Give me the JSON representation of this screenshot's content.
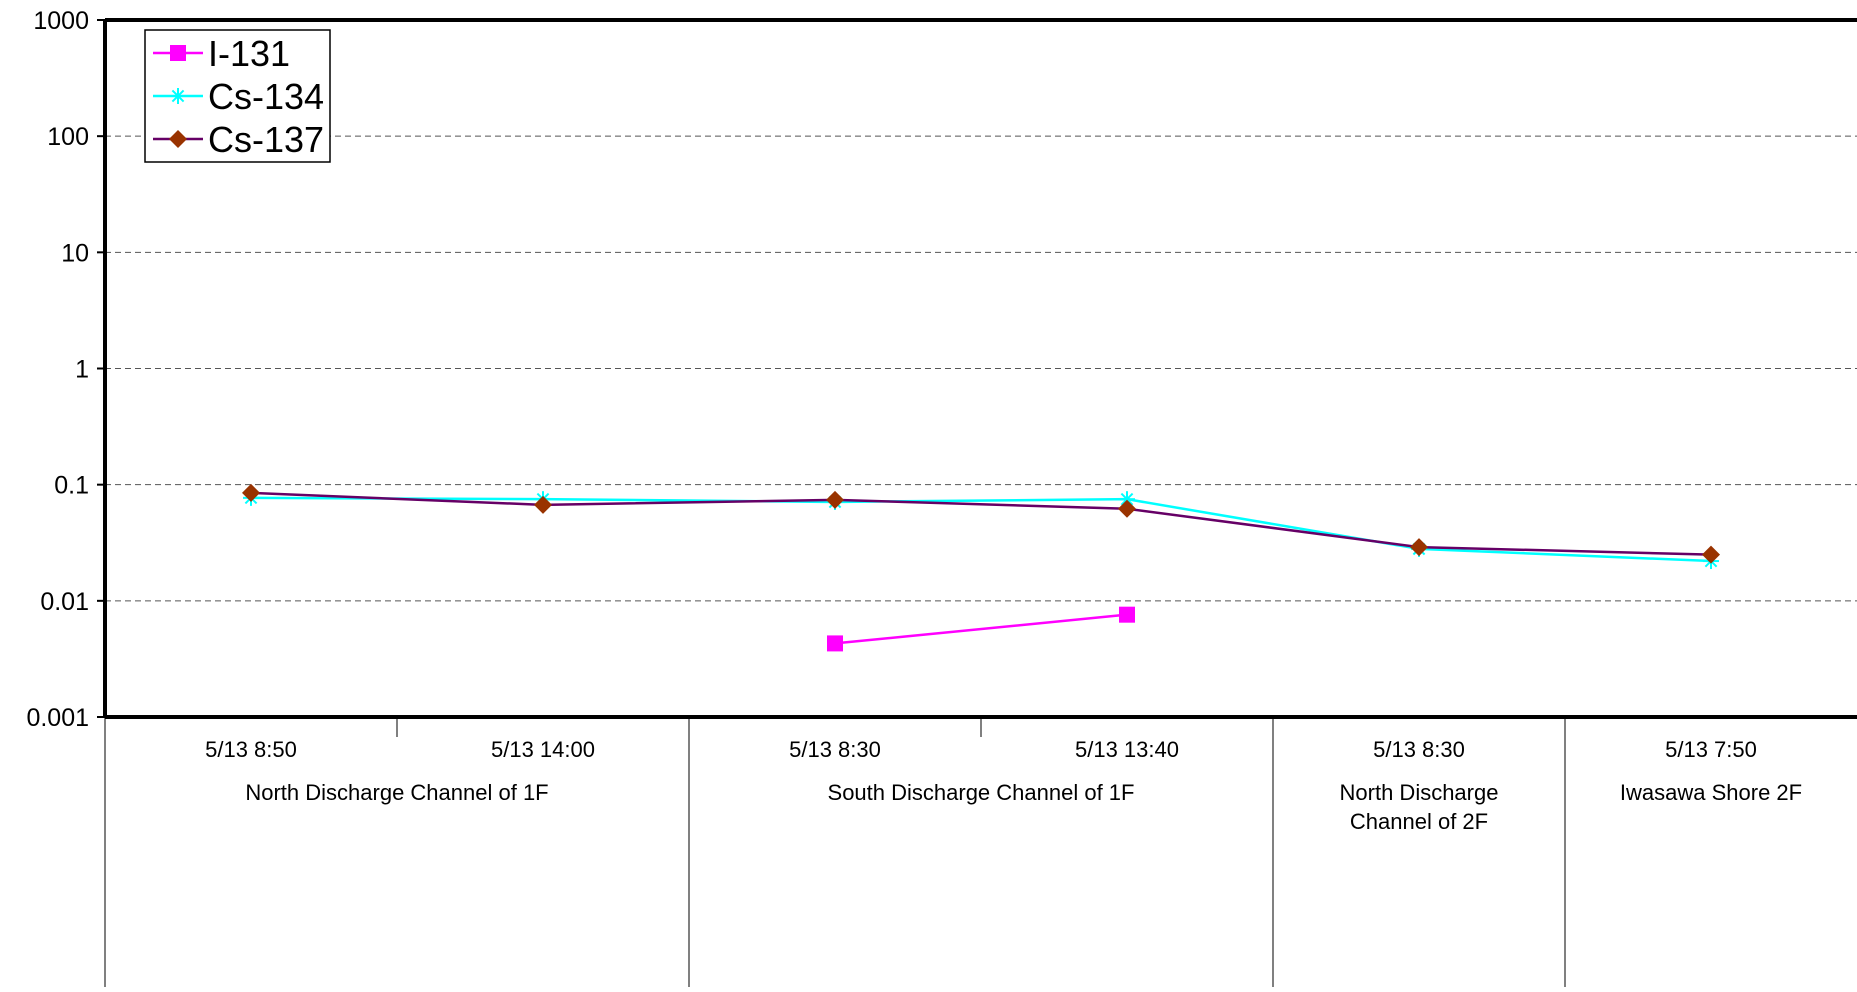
{
  "chart_data": {
    "type": "line",
    "title": "",
    "xlabel": "",
    "ylabel": "",
    "y_scale": "log",
    "ylim": [
      0.001,
      1000
    ],
    "y_ticks": [
      "0.001",
      "0.01",
      "0.1",
      "1",
      "10",
      "100",
      "1000"
    ],
    "grid": "horizontal dashed",
    "legend_position": "top-left",
    "categories": [
      "5/13 8:50",
      "5/13 14:00",
      "5/13 8:30",
      "5/13 13:40",
      "5/13 8:30",
      "5/13 7:50"
    ],
    "groups": [
      {
        "label": "North Discharge Channel of 1F",
        "span": 2
      },
      {
        "label": "South Discharge Channel of 1F",
        "span": 2
      },
      {
        "label": "North Discharge\nChannel of 2F",
        "span": 1
      },
      {
        "label": "Iwasawa Shore 2F",
        "span": 1
      }
    ],
    "series": [
      {
        "name": "I-131",
        "color": "#ff00ff",
        "marker": "square",
        "values": [
          null,
          null,
          0.0043,
          0.0076,
          null,
          null
        ]
      },
      {
        "name": "Cs-134",
        "color": "#00ffff",
        "marker": "asterisk",
        "values": [
          0.077,
          0.075,
          0.071,
          0.075,
          0.028,
          0.022
        ]
      },
      {
        "name": "Cs-137",
        "color": "#993300",
        "line_color": "#660066",
        "marker": "diamond",
        "values": [
          0.085,
          0.067,
          0.074,
          0.062,
          0.029,
          0.025
        ]
      }
    ]
  }
}
